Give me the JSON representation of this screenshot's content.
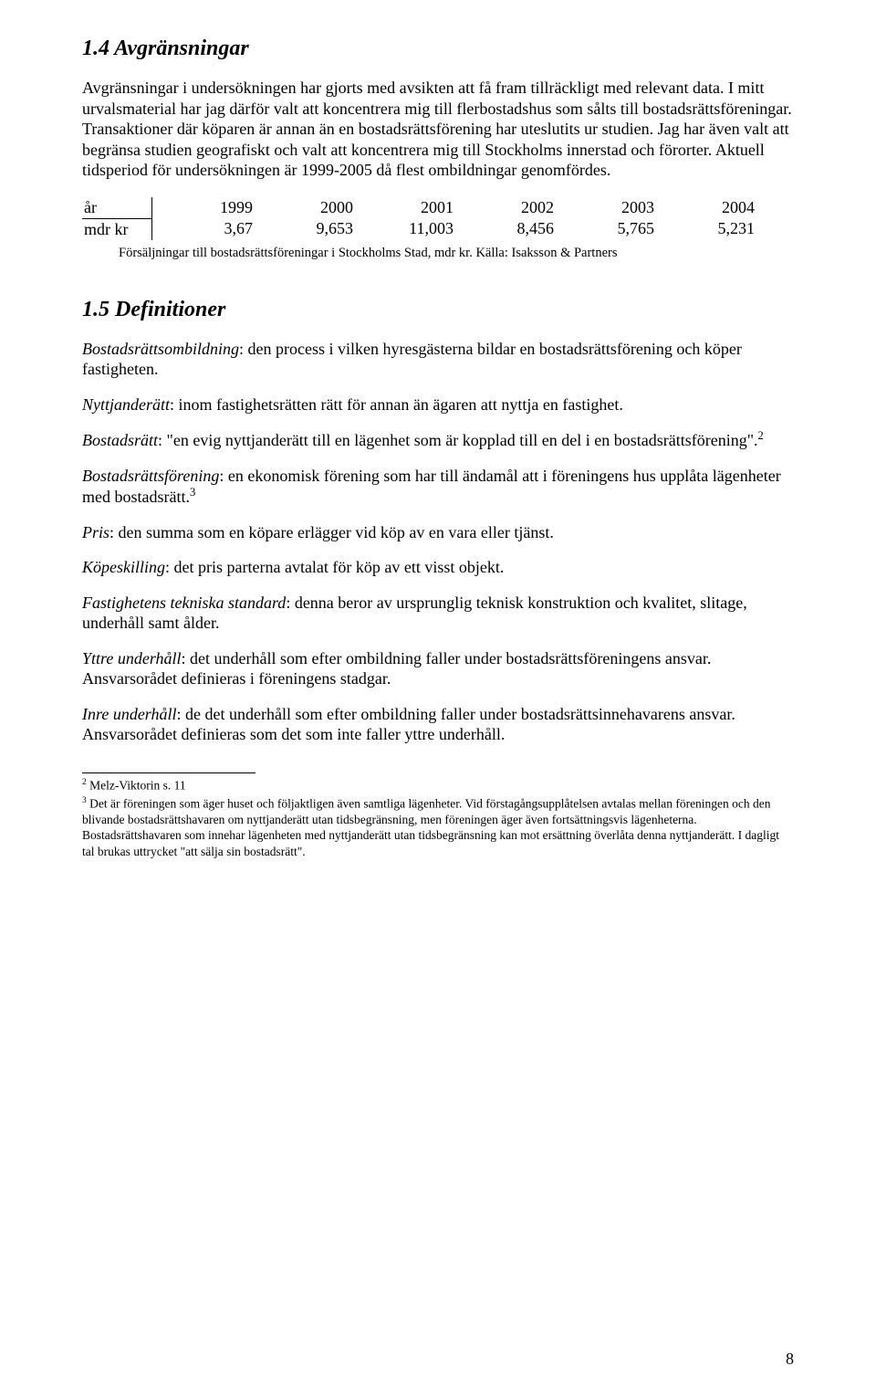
{
  "section_1_4": {
    "heading": "1.4 Avgränsningar",
    "para": "Avgränsningar i undersökningen har gjorts med avsikten att få fram tillräckligt med relevant data. I mitt urvalsmaterial har jag därför valt att koncentrera mig till flerbostadshus som sålts till bostadsrättsföreningar. Transaktioner där köparen är annan än en bostadsrättsförening har uteslutits ur studien. Jag har även valt att begränsa studien geografiskt och valt att koncentrera mig till Stockholms innerstad och förorter. Aktuell tidsperiod för undersökningen är 1999-2005 då flest ombildningar genomfördes."
  },
  "table": {
    "row1_label": "år",
    "row2_label": "mdr kr",
    "years": [
      "1999",
      "2000",
      "2001",
      "2002",
      "2003",
      "2004"
    ],
    "values": [
      "3,67",
      "9,653",
      "11,003",
      "8,456",
      "5,765",
      "5,231"
    ],
    "caption": "Försäljningar till bostadsrättsföreningar i Stockholms Stad, mdr kr. Källa: Isaksson & Partners"
  },
  "section_1_5": {
    "heading": "1.5 Definitioner",
    "defs": [
      {
        "term": "Bostadsrättsombildning",
        "text": ": den process i vilken hyresgästerna bildar en bostadsrättsförening och köper fastigheten."
      },
      {
        "term": "Nyttjanderätt",
        "text": ": inom fastighetsrätten rätt för annan än ägaren att nyttja en fastighet."
      },
      {
        "term": "Bostadsrätt",
        "text": ": \"en evig nyttjanderätt till en lägenhet som är kopplad till en del i en bostadsrättsförening\".",
        "sup": "2"
      },
      {
        "term": "Bostadsrättsförening",
        "text": ": en ekonomisk förening som har till ändamål att i föreningens hus upplåta lägenheter med bostadsrätt.",
        "sup": "3"
      },
      {
        "term": "Pris",
        "text": ": den summa som en köpare erlägger vid köp av en vara eller tjänst."
      },
      {
        "term": "Köpeskilling",
        "text": ": det pris parterna avtalat för köp av ett visst objekt."
      },
      {
        "term": "Fastighetens tekniska standard",
        "text": ": denna beror av ursprunglig teknisk konstruktion och kvalitet, slitage, underhåll samt ålder."
      },
      {
        "term": "Yttre underhåll",
        "text": ": det underhåll som efter ombildning faller under bostadsrättsföreningens ansvar. Ansvarsorådet definieras i föreningens stadgar."
      },
      {
        "term": "Inre underhåll",
        "text": ": de det underhåll som efter ombildning faller under bostadsrättsinnehavarens ansvar. Ansvarsorådet definieras som det som inte faller yttre underhåll."
      }
    ]
  },
  "footnotes": [
    {
      "marker": "2",
      "text": " Melz-Viktorin s. 11"
    },
    {
      "marker": "3",
      "text": " Det är föreningen som äger huset och följaktligen även samtliga lägenheter. Vid förstagångsupplåtelsen avtalas mellan föreningen och den blivande bostadsrättshavaren om nyttjanderätt utan tidsbegränsning, men föreningen äger även fortsättningsvis lägenheterna. Bostadsrättshavaren som innehar lägenheten med nyttjanderätt utan tidsbegränsning kan mot ersättning överlåta denna nyttjanderätt. I dagligt tal brukas uttrycket \"att sälja sin bostadsrätt\"."
    }
  ],
  "page_number": "8"
}
